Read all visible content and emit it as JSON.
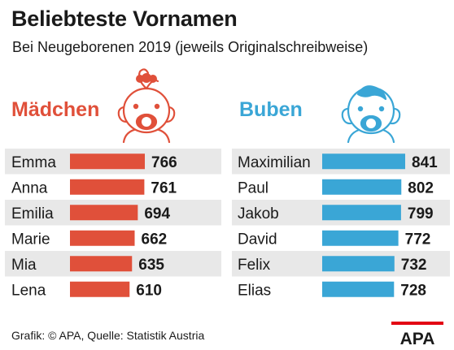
{
  "header": {
    "title": "Beliebteste Vornamen",
    "subtitle": "Bei Neugeborenen 2019 (jeweils Originalschreibweise)"
  },
  "groups": {
    "girls": {
      "label": "Mädchen",
      "color": "#e0503a",
      "icon": "baby-girl-icon"
    },
    "boys": {
      "label": "Buben",
      "color": "#3aa6d6",
      "icon": "baby-boy-icon"
    }
  },
  "colors": {
    "row_shade": "#e8e8e8",
    "text": "#1a1a1a"
  },
  "chart_data": [
    {
      "type": "bar",
      "orientation": "horizontal",
      "group": "Mädchen",
      "categories": [
        "Emma",
        "Anna",
        "Emilia",
        "Marie",
        "Mia",
        "Lena"
      ],
      "values": [
        766,
        761,
        694,
        662,
        635,
        610
      ],
      "value_labels_shown": true,
      "axis_shown": false
    },
    {
      "type": "bar",
      "orientation": "horizontal",
      "group": "Buben",
      "categories": [
        "Maximilian",
        "Paul",
        "Jakob",
        "David",
        "Felix",
        "Elias"
      ],
      "values": [
        841,
        802,
        799,
        772,
        732,
        728
      ],
      "value_labels_shown": true,
      "axis_shown": false
    }
  ],
  "footer": {
    "credit": "Grafik: © APA, Quelle: Statistik Austria",
    "logo_text": "APA"
  }
}
